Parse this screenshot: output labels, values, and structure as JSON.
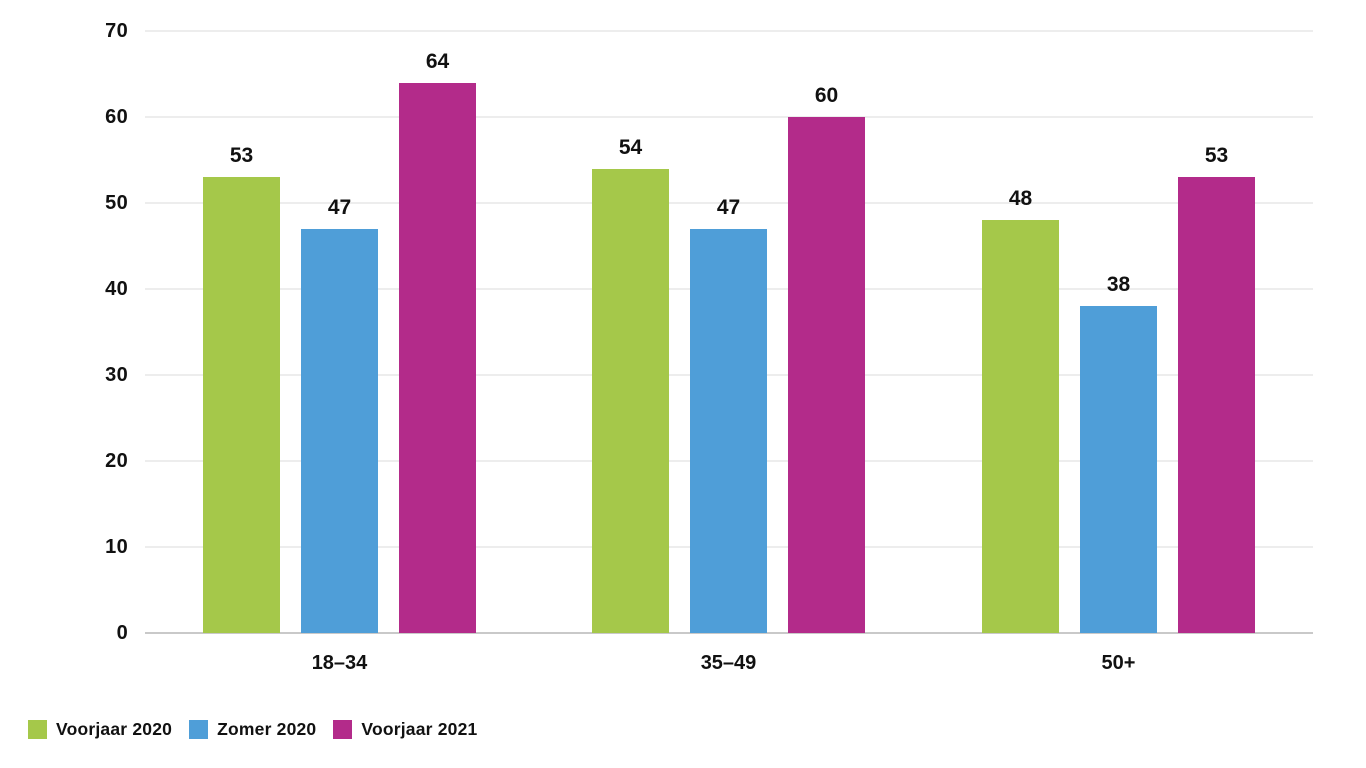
{
  "chart_data": {
    "type": "bar",
    "title": "",
    "categories": [
      "18–34",
      "35–49",
      "50+"
    ],
    "series": [
      {
        "name": "Voorjaar 2020",
        "color": "#a5c84a",
        "values": [
          53,
          54,
          48
        ]
      },
      {
        "name": "Zomer 2020",
        "color": "#4f9ed8",
        "values": [
          47,
          47,
          38
        ]
      },
      {
        "name": "Voorjaar 2021",
        "color": "#b32b8a",
        "values": [
          64,
          60,
          53
        ]
      }
    ],
    "ylim": [
      0,
      70
    ],
    "ytick_step": 10,
    "ytick_labels": [
      "0",
      "10",
      "20",
      "30",
      "40",
      "50",
      "60",
      "70"
    ],
    "grid": true,
    "data_labels": true,
    "legend_position": "bottom-left"
  },
  "colors": {
    "background": "#ffffff",
    "text": "#111111",
    "gridline": "#ededed",
    "axis_line": "#c9c9c9"
  }
}
